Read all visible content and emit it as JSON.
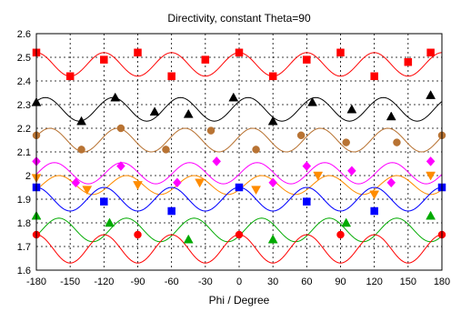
{
  "chart_data": {
    "type": "line",
    "title": "Directivity, constant Theta=90",
    "xlabel": "Phi / Degree",
    "ylabel": "",
    "xlim": [
      -180,
      180
    ],
    "ylim": [
      1.6,
      2.6
    ],
    "grid": true,
    "x_ticks": [
      "-180",
      "-150",
      "-120",
      "-90",
      "-60",
      "-30",
      "0",
      "30",
      "60",
      "90",
      "120",
      "150",
      "180"
    ],
    "y_ticks": [
      "1.6",
      "1.7",
      "1.8",
      "1.9",
      "2",
      "2.1",
      "2.2",
      "2.3",
      "2.4",
      "2.5",
      "2.6"
    ],
    "series": [
      {
        "color": "#ff0000",
        "marker": "square",
        "mean": 2.47,
        "amp": 0.05,
        "phase": 0,
        "points": [
          [
            -180,
            2.52
          ],
          [
            -150,
            2.42
          ],
          [
            -120,
            2.49
          ],
          [
            -90,
            2.52
          ],
          [
            -60,
            2.42
          ],
          [
            -30,
            2.49
          ],
          [
            0,
            2.52
          ],
          [
            30,
            2.42
          ],
          [
            60,
            2.49
          ],
          [
            90,
            2.52
          ],
          [
            120,
            2.42
          ],
          [
            150,
            2.48
          ],
          [
            170,
            2.52
          ]
        ]
      },
      {
        "color": "#000000",
        "marker": "triangle-up",
        "mean": 2.28,
        "amp": 0.05,
        "phase": 8,
        "points": [
          [
            -180,
            2.31
          ],
          [
            -140,
            2.23
          ],
          [
            -110,
            2.33
          ],
          [
            -75,
            2.27
          ],
          [
            -45,
            2.26
          ],
          [
            -5,
            2.33
          ],
          [
            30,
            2.23
          ],
          [
            65,
            2.31
          ],
          [
            100,
            2.28
          ],
          [
            135,
            2.25
          ],
          [
            170,
            2.34
          ]
        ]
      },
      {
        "color": "#b87333",
        "marker": "circle",
        "mean": 2.15,
        "amp": 0.05,
        "phase": 12,
        "points": [
          [
            -180,
            2.17
          ],
          [
            -140,
            2.11
          ],
          [
            -105,
            2.2
          ],
          [
            -65,
            2.11
          ],
          [
            -25,
            2.19
          ],
          [
            15,
            2.11
          ],
          [
            55,
            2.17
          ],
          [
            95,
            2.14
          ],
          [
            140,
            2.14
          ],
          [
            180,
            2.17
          ]
        ]
      },
      {
        "color": "#ff00ff",
        "marker": "diamond",
        "mean": 2.01,
        "amp": 0.045,
        "phase": 16,
        "points": [
          [
            -180,
            2.06
          ],
          [
            -145,
            1.97
          ],
          [
            -105,
            2.04
          ],
          [
            -55,
            1.97
          ],
          [
            -20,
            2.06
          ],
          [
            30,
            1.97
          ],
          [
            60,
            2.04
          ],
          [
            100,
            2.02
          ],
          [
            135,
            1.97
          ],
          [
            170,
            2.06
          ]
        ]
      },
      {
        "color": "#ff8c00",
        "marker": "triangle-down",
        "mean": 1.96,
        "amp": 0.04,
        "phase": 20,
        "points": [
          [
            -180,
            1.99
          ],
          [
            -135,
            1.94
          ],
          [
            -90,
            1.96
          ],
          [
            -35,
            1.97
          ],
          [
            15,
            1.94
          ],
          [
            70,
            2.0
          ],
          [
            120,
            1.92
          ],
          [
            170,
            2.0
          ]
        ]
      },
      {
        "color": "#0000ff",
        "marker": "square",
        "mean": 1.9,
        "amp": 0.05,
        "phase": 0,
        "points": [
          [
            -180,
            1.95
          ],
          [
            -120,
            1.89
          ],
          [
            -60,
            1.85
          ],
          [
            0,
            1.95
          ],
          [
            60,
            1.89
          ],
          [
            120,
            1.85
          ],
          [
            180,
            1.95
          ]
        ]
      },
      {
        "color": "#00aa00",
        "marker": "triangle-up",
        "mean": 1.77,
        "amp": 0.05,
        "phase": 20,
        "points": [
          [
            -180,
            1.83
          ],
          [
            -115,
            1.8
          ],
          [
            -45,
            1.73
          ],
          [
            30,
            1.73
          ],
          [
            95,
            1.8
          ],
          [
            170,
            1.83
          ]
        ]
      },
      {
        "color": "#ff0000",
        "marker": "circle",
        "mean": 1.69,
        "amp": 0.06,
        "phase": 0,
        "points": [
          [
            -180,
            1.75
          ],
          [
            -90,
            1.75
          ],
          [
            0,
            1.75
          ],
          [
            90,
            1.75
          ],
          [
            180,
            1.75
          ]
        ]
      }
    ]
  }
}
